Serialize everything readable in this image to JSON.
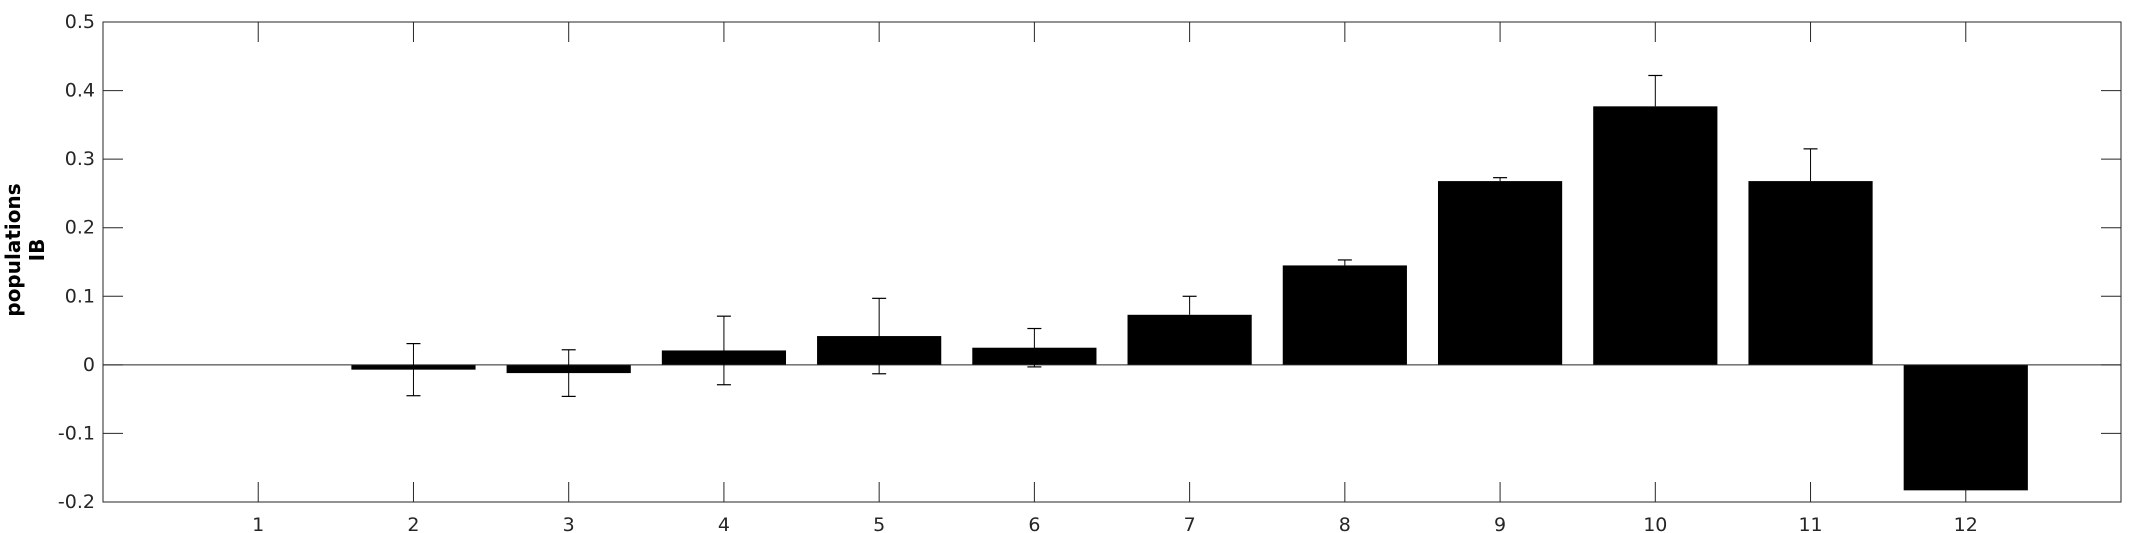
{
  "chart_data": {
    "type": "bar",
    "title": "",
    "xlabel": "",
    "ylabel": [
      "populations",
      "IB"
    ],
    "categories": [
      "1",
      "2",
      "3",
      "4",
      "5",
      "6",
      "7",
      "8",
      "9",
      "10",
      "11",
      "12"
    ],
    "values": [
      0,
      -0.007,
      -0.012,
      0.021,
      0.042,
      0.025,
      0.073,
      0.145,
      0.268,
      0.377,
      0.268,
      -0.183
    ],
    "error_plus": [
      0,
      0.038,
      0.034,
      0.05,
      0.055,
      0.028,
      0.027,
      0.008,
      0.005,
      0.045,
      0.047,
      0
    ],
    "error_minus": [
      0,
      0.038,
      0.034,
      0.05,
      0.055,
      0.028,
      0,
      0,
      0,
      0,
      0,
      0
    ],
    "ylim": [
      -0.2,
      0.5
    ],
    "xlim": [
      0,
      13
    ],
    "yticks": [
      "-0.2",
      "-0.1",
      "0",
      "0.1",
      "0.2",
      "0.3",
      "0.4",
      "0.5"
    ],
    "ytick_values": [
      -0.2,
      -0.1,
      0,
      0.1,
      0.2,
      0.3,
      0.4,
      0.5
    ],
    "bar_color": "#000000",
    "grid": false,
    "legend": "none"
  }
}
